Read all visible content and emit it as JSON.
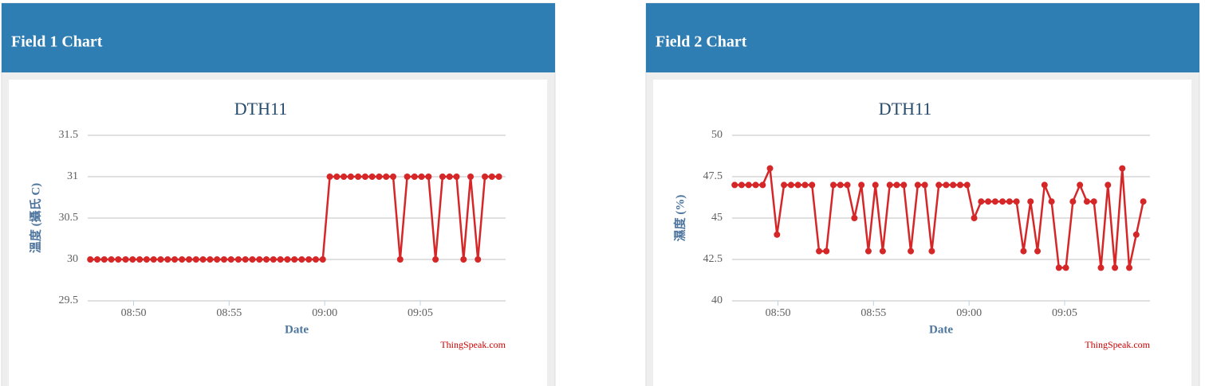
{
  "panels": [
    "Field 1 Chart",
    "Field 2 Chart"
  ],
  "chart_data": [
    {
      "type": "line",
      "title": "DTH11",
      "x_label": "Date",
      "y_label": "溫度 (攝氏 C)",
      "credit": "ThingSpeak.com",
      "color": "#d62728",
      "grid": true,
      "xlim": [
        "08:47:36",
        "09:09:28"
      ],
      "xticks": [
        "08:50",
        "08:55",
        "09:00",
        "09:05"
      ],
      "ylim": [
        29.5,
        31.5
      ],
      "yticks": [
        29.5,
        30,
        30.5,
        31,
        31.5
      ],
      "x": [
        "08:47:44",
        "08:48:06",
        "08:48:28",
        "08:48:50",
        "08:49:12",
        "08:49:35",
        "08:49:57",
        "08:50:19",
        "08:50:41",
        "08:51:03",
        "08:51:25",
        "08:51:47",
        "08:52:09",
        "08:52:32",
        "08:52:54",
        "08:53:16",
        "08:53:38",
        "08:54:00",
        "08:54:22",
        "08:54:44",
        "08:55:06",
        "08:55:29",
        "08:55:51",
        "08:56:13",
        "08:56:35",
        "08:56:57",
        "08:57:19",
        "08:57:41",
        "08:58:03",
        "08:58:25",
        "08:58:48",
        "08:59:10",
        "08:59:32",
        "08:59:54",
        "09:00:16",
        "09:00:38",
        "09:01:00",
        "09:01:22",
        "09:01:45",
        "09:02:07",
        "09:02:29",
        "09:02:51",
        "09:03:13",
        "09:03:35",
        "09:03:57",
        "09:04:19",
        "09:04:42",
        "09:05:04",
        "09:05:26",
        "09:05:48",
        "09:06:10",
        "09:06:32",
        "09:06:54",
        "09:07:16",
        "09:07:38",
        "09:08:01",
        "09:08:23",
        "09:08:45",
        "09:09:07"
      ],
      "values": [
        30,
        30,
        30,
        30,
        30,
        30,
        30,
        30,
        30,
        30,
        30,
        30,
        30,
        30,
        30,
        30,
        30,
        30,
        30,
        30,
        30,
        30,
        30,
        30,
        30,
        30,
        30,
        30,
        30,
        30,
        30,
        30,
        30,
        30,
        31,
        31,
        31,
        31,
        31,
        31,
        31,
        31,
        31,
        31,
        30,
        31,
        31,
        31,
        31,
        30,
        31,
        31,
        31,
        30,
        31,
        30,
        31,
        31,
        31
      ]
    },
    {
      "type": "line",
      "title": "DTH11",
      "x_label": "Date",
      "y_label": "濕度 (%)",
      "credit": "ThingSpeak.com",
      "color": "#d62728",
      "grid": true,
      "xlim": [
        "08:47:36",
        "09:09:28"
      ],
      "xticks": [
        "08:50",
        "08:55",
        "09:00",
        "09:05"
      ],
      "ylim": [
        40,
        50
      ],
      "yticks": [
        40,
        42.5,
        45,
        47.5,
        50
      ],
      "x": [
        "08:47:44",
        "08:48:06",
        "08:48:28",
        "08:48:50",
        "08:49:12",
        "08:49:35",
        "08:49:57",
        "08:50:19",
        "08:50:41",
        "08:51:03",
        "08:51:25",
        "08:51:47",
        "08:52:09",
        "08:52:32",
        "08:52:54",
        "08:53:16",
        "08:53:38",
        "08:54:00",
        "08:54:22",
        "08:54:44",
        "08:55:06",
        "08:55:29",
        "08:55:51",
        "08:56:13",
        "08:56:35",
        "08:56:57",
        "08:57:19",
        "08:57:41",
        "08:58:03",
        "08:58:25",
        "08:58:48",
        "08:59:10",
        "08:59:32",
        "08:59:54",
        "09:00:16",
        "09:00:38",
        "09:01:00",
        "09:01:22",
        "09:01:45",
        "09:02:07",
        "09:02:29",
        "09:02:51",
        "09:03:13",
        "09:03:35",
        "09:03:57",
        "09:04:19",
        "09:04:42",
        "09:05:04",
        "09:05:26",
        "09:05:48",
        "09:06:10",
        "09:06:32",
        "09:06:54",
        "09:07:16",
        "09:07:38",
        "09:08:01",
        "09:08:23",
        "09:08:45",
        "09:09:07"
      ],
      "values": [
        47,
        47,
        47,
        47,
        47,
        48,
        44,
        47,
        47,
        47,
        47,
        47,
        43,
        43,
        47,
        47,
        47,
        45,
        47,
        43,
        47,
        43,
        47,
        47,
        47,
        43,
        47,
        47,
        43,
        47,
        47,
        47,
        47,
        47,
        45,
        46,
        46,
        46,
        46,
        46,
        46,
        43,
        46,
        43,
        47,
        46,
        42,
        42,
        46,
        47,
        46,
        46,
        42,
        47,
        42,
        48,
        42,
        44,
        46
      ]
    }
  ]
}
